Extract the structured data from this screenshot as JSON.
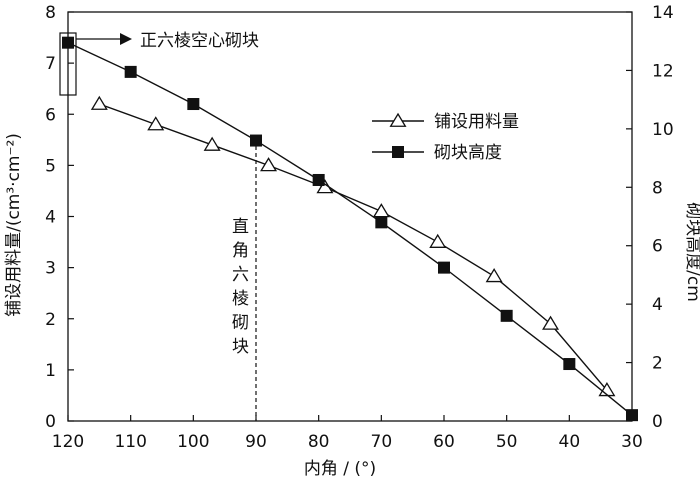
{
  "chart_data": {
    "type": "line",
    "x_axis": {
      "label": "内角 / (°)",
      "reversed": true,
      "lim": [
        30,
        120
      ],
      "ticks": [
        120,
        110,
        100,
        90,
        80,
        70,
        60,
        50,
        40,
        30
      ]
    },
    "y_axis_left": {
      "label": "铺设用料量/(cm³·cm⁻²)",
      "lim": [
        0,
        8
      ],
      "ticks": [
        0,
        1,
        2,
        3,
        4,
        5,
        6,
        7,
        8
      ]
    },
    "y_axis_right": {
      "label": "砌块高度/cm",
      "lim": [
        0,
        14
      ],
      "ticks": [
        0,
        2,
        4,
        6,
        8,
        10,
        12,
        14
      ]
    },
    "series": [
      {
        "name": "铺设用料量",
        "axis": "left",
        "marker": "open-triangle",
        "x": [
          115,
          106,
          97,
          88,
          79,
          70,
          61,
          52,
          43,
          34
        ],
        "y": [
          6.2,
          5.8,
          5.4,
          5.0,
          4.57,
          4.1,
          3.5,
          2.83,
          1.9,
          0.6
        ]
      },
      {
        "name": "砌块高度",
        "axis": "right",
        "marker": "filled-square",
        "x": [
          120,
          110,
          100,
          90,
          80,
          70,
          60,
          50,
          40,
          30
        ],
        "y": [
          12.95,
          11.95,
          10.85,
          9.6,
          8.25,
          6.8,
          5.25,
          3.6,
          1.95,
          0.2
        ]
      }
    ],
    "legend": {
      "placement": "right-middle"
    },
    "grid": false,
    "annotations": [
      {
        "text": "正六棱空心砌块",
        "at_x": 120
      },
      {
        "text": "直角六棱砌块",
        "at_x": 90
      }
    ]
  }
}
